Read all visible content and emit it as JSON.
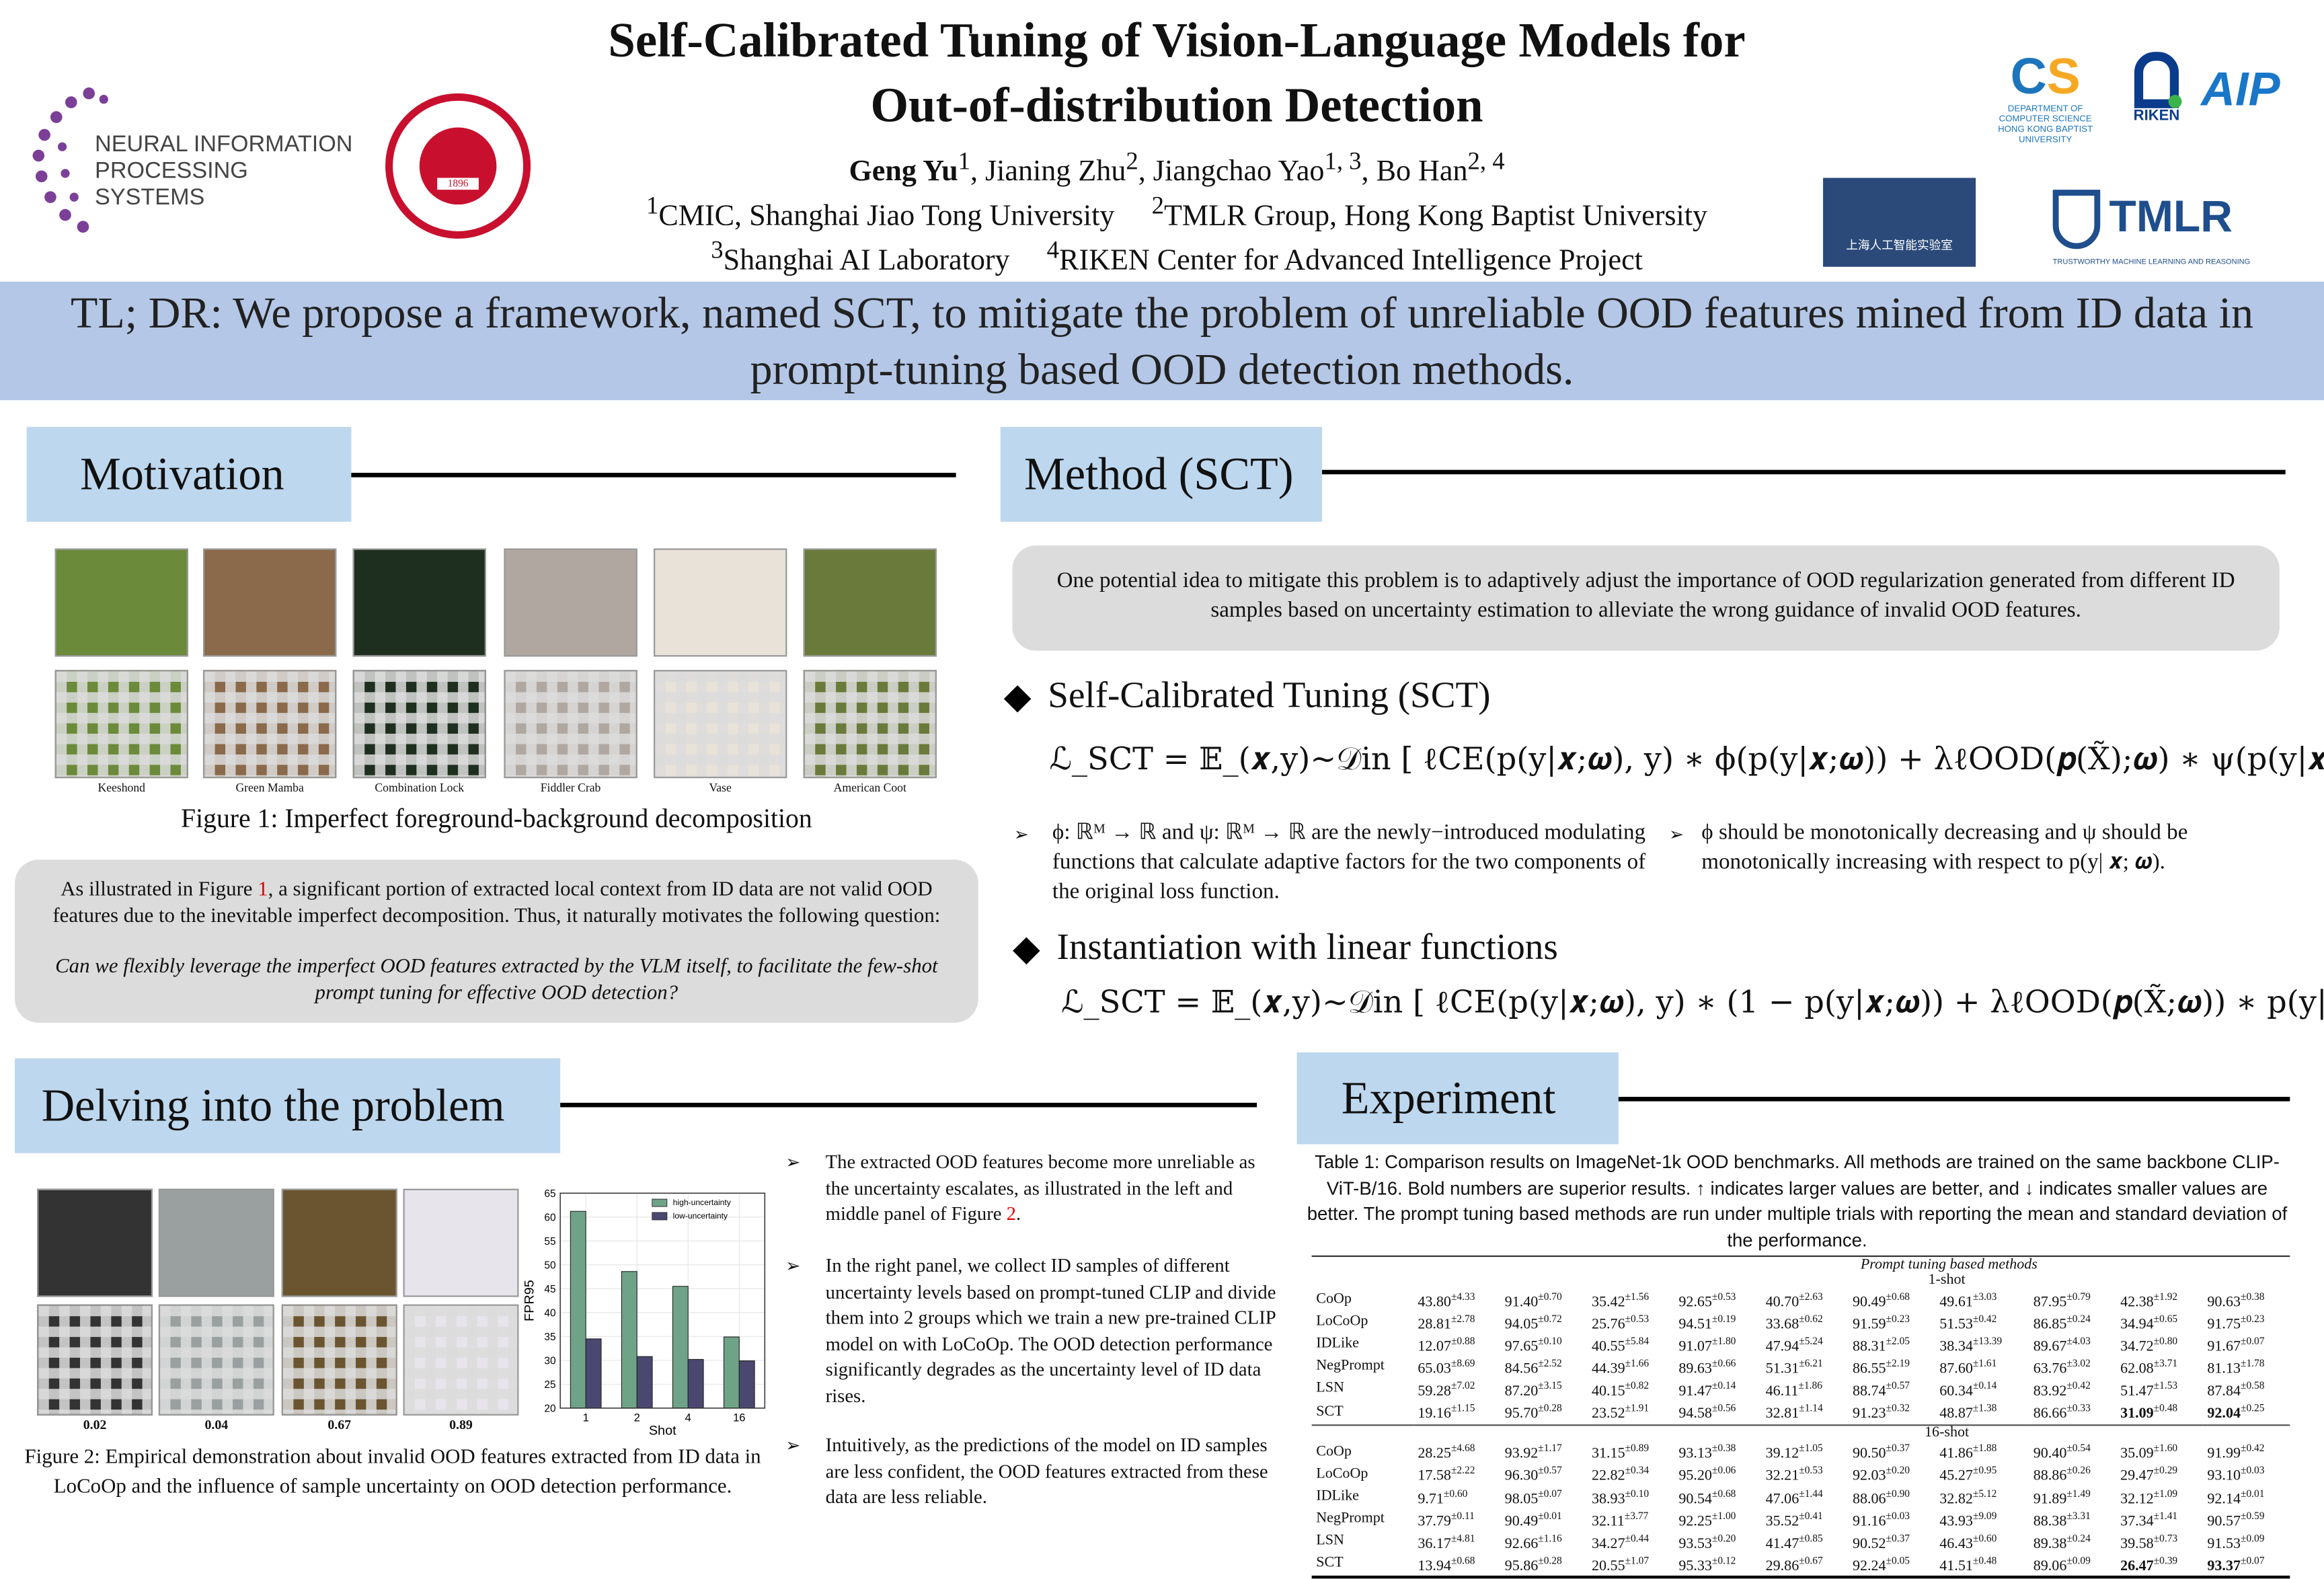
{
  "header": {
    "title_line1": "Self-Calibrated Tuning of Vision-Language Models for",
    "title_line2": "Out-of-distribution Detection",
    "authors": [
      {
        "name": "Geng Yu",
        "sup": "1"
      },
      {
        "name": "Jianing Zhu",
        "sup": "2"
      },
      {
        "name": "Jiangchao Yao",
        "sup": "1, 3"
      },
      {
        "name": "Bo Han",
        "sup": "2, 4"
      }
    ],
    "aff1": {
      "sup": "1",
      "text": "CMIC, Shanghai Jiao Tong University"
    },
    "aff2": {
      "sup": "2",
      "text": "TMLR Group, Hong Kong Baptist University"
    },
    "aff3": {
      "sup": "3",
      "text": "Shanghai AI Laboratory"
    },
    "aff4": {
      "sup": "4",
      "text": "RIKEN Center for Advanced Intelligence Project"
    }
  },
  "logos": {
    "neurips": "NEURAL INFORMATION PROCESSING SYSTEMS",
    "sjtu": "SHANGHAI JIAO TONG UNIVERSITY 1896",
    "cs": "DEPARTMENT OF COMPUTER SCIENCE HONG KONG BAPTIST UNIVERSITY",
    "riken": "RIKEN",
    "aip": "AIP",
    "shlab": "上海人工智能实验室 Shanghai Artificial Intelligence Laboratory",
    "tmlr": "TMLR",
    "tmlr_sub": "TRUSTWORTHY MACHINE LEARNING AND REASONING"
  },
  "tldr": {
    "lead": "TL; DR:",
    "text": " We propose a framework, named SCT, to mitigate the problem of unreliable OOD features mined from ID data in prompt-tuning based OOD detection methods."
  },
  "motivation": {
    "heading": "Motivation",
    "figure_labels": [
      "Keeshond",
      "Green Mamba",
      "Combination Lock",
      "Fiddler Crab",
      "Vase",
      "American Coot"
    ],
    "caption": "Figure 1: Imperfect foreground-background decomposition",
    "box_text_pre": "As illustrated in Figure ",
    "box_ref": "1",
    "box_text_post": ", a significant portion of extracted local context from ID data are not valid OOD features due to the inevitable imperfect decomposition. Thus, it naturally motivates the following question:",
    "question": "Can we flexibly leverage the imperfect OOD features extracted by the VLM itself, to facilitate the few-shot prompt tuning for effective OOD detection?",
    "ref_color": "#e00000"
  },
  "method": {
    "heading": "Method (SCT)",
    "idea": "One potential idea to mitigate this problem is to adaptively adjust the importance of OOD regularization generated from different ID samples based on uncertainty estimation to alleviate the wrong guidance of invalid OOD features.",
    "sub1": "Self-Calibrated Tuning (SCT)",
    "eq1": "ℒ_SCT = 𝔼_(𝒙,y)∼𝒟in [ ℓCE(p(y|𝒙;𝝎), y) ∗ ϕ(p(y|𝒙;𝝎)) + λℓOOD(𝒑(X̃);𝝎) ∗ ψ(p(y|𝒙;𝝎)) ]",
    "bullet1": "ϕ: ℝᴹ → ℝ and ψ: ℝᴹ → ℝ are the newly−introduced modulating functions that calculate adaptive factors for the two components of the original loss function.",
    "bullet2": "ϕ should be monotonically decreasing and ψ should be monotonically increasing with respect to p(y| 𝒙; 𝝎).",
    "sub2": "Instantiation with linear functions",
    "eq2": "ℒ_SCT = 𝔼_(𝒙,y)∼𝒟in [ ℓCE(p(y|𝒙;𝝎), y) ∗ (1 − p(y|𝒙;𝝎)) + λℓOOD(𝒑(X̃;𝝎)) ∗ p(y|𝒙;𝝎) ]"
  },
  "delving": {
    "heading": "Delving into  the problem",
    "uncertainty_labels": [
      "0.02",
      "0.04",
      "0.67",
      "0.89"
    ],
    "caption": "Figure 2: Empirical demonstration about invalid OOD features extracted from ID data in LoCoOp and the influence of sample uncertainty on OOD detection performance.",
    "bullets": [
      {
        "pre": "The extracted OOD features become more unreliable as the uncertainty escalates, as illustrated in the left and middle panel of Figure ",
        "ref": "2",
        "post": "."
      },
      {
        "pre": "In the right panel, we collect ID samples of different uncertainty levels based on prompt-tuned CLIP and divide them into 2 groups which we train a new pre-trained CLIP model on with LoCoOp. The OOD detection performance significantly degrades as the uncertainty level of ID data rises.",
        "ref": "",
        "post": ""
      },
      {
        "pre": "Intuitively, as the predictions of the model on ID samples are less confident, the OOD features extracted from these data are less reliable.",
        "ref": "",
        "post": ""
      }
    ]
  },
  "chart_data": {
    "type": "bar",
    "categories": [
      "1",
      "2",
      "4",
      "16"
    ],
    "series": [
      {
        "name": "high-uncertainty",
        "values": [
          61.2,
          48.6,
          45.5,
          34.9
        ],
        "color": "#6fa387"
      },
      {
        "name": "low-uncertainty",
        "values": [
          34.5,
          30.8,
          30.2,
          29.9
        ],
        "color": "#4a4870"
      }
    ],
    "xlabel": "Shot",
    "ylabel": "FPR95",
    "ylim": [
      20,
      65
    ],
    "yticks": [
      20,
      25,
      30,
      35,
      40,
      45,
      50,
      55,
      60,
      65
    ],
    "grid": true,
    "legend": "top-right"
  },
  "experiment": {
    "heading": "Experiment",
    "caption": "Table 1: Comparison results on ImageNet-1k OOD benchmarks. All methods are trained on the same backbone CLIP-ViT-B/16. Bold numbers are superior results. ↑ indicates larger values are better, and ↓ indicates smaller values are better. The prompt tuning based methods are run under multiple trials with reporting the mean and standard deviation of the performance.",
    "group_label": "Prompt tuning based methods",
    "blocks": [
      {
        "label": "1-shot",
        "rows": [
          [
            "CoOp",
            "43.80|4.33",
            "91.40|0.70",
            "35.42|1.56",
            "92.65|0.53",
            "40.70|2.63",
            "90.49|0.68",
            "49.61|3.03",
            "87.95|0.79",
            "42.38|1.92",
            "90.63|0.38"
          ],
          [
            "LoCoOp",
            "28.81|2.78",
            "94.05|0.72",
            "25.76|0.53",
            "94.51|0.19",
            "33.68|0.62",
            "91.59|0.23",
            "51.53|0.42",
            "86.85|0.24",
            "34.94|0.65",
            "91.75|0.23"
          ],
          [
            "IDLike",
            "12.07|0.88",
            "97.65|0.10",
            "40.55|5.84",
            "91.07|1.80",
            "47.94|5.24",
            "88.31|2.05",
            "38.34|13.39",
            "89.67|4.03",
            "34.72|0.80",
            "91.67|0.07"
          ],
          [
            "NegPrompt",
            "65.03|8.69",
            "84.56|2.52",
            "44.39|1.66",
            "89.63|0.66",
            "51.31|6.21",
            "86.55|2.19",
            "87.60|1.61",
            "63.76|3.02",
            "62.08|3.71",
            "81.13|1.78"
          ],
          [
            "LSN",
            "59.28|7.02",
            "87.20|3.15",
            "40.15|0.82",
            "91.47|0.14",
            "46.11|1.86",
            "88.74|0.57",
            "60.34|0.14",
            "83.92|0.42",
            "51.47|1.53",
            "87.84|0.58"
          ],
          [
            "SCT",
            "19.16|1.15",
            "95.70|0.28",
            "23.52|1.91",
            "94.58|0.56",
            "32.81|1.14",
            "91.23|0.32",
            "48.87|1.38",
            "86.66|0.33",
            "*31.09|0.48",
            "*92.04|0.25"
          ]
        ]
      },
      {
        "label": "16-shot",
        "rows": [
          [
            "CoOp",
            "28.25|4.68",
            "93.92|1.17",
            "31.15|0.89",
            "93.13|0.38",
            "39.12|1.05",
            "90.50|0.37",
            "41.86|1.88",
            "90.40|0.54",
            "35.09|1.60",
            "91.99|0.42"
          ],
          [
            "LoCoOp",
            "17.58|2.22",
            "96.30|0.57",
            "22.82|0.34",
            "95.20|0.06",
            "32.21|0.53",
            "92.03|0.20",
            "45.27|0.95",
            "88.86|0.26",
            "29.47|0.29",
            "93.10|0.03"
          ],
          [
            "IDLike",
            "9.71|0.60",
            "98.05|0.07",
            "38.93|0.10",
            "90.54|0.68",
            "47.06|1.44",
            "88.06|0.90",
            "32.82|5.12",
            "91.89|1.49",
            "32.12|1.09",
            "92.14|0.01"
          ],
          [
            "NegPrompt",
            "37.79|0.11",
            "90.49|0.01",
            "32.11|3.77",
            "92.25|1.00",
            "35.52|0.41",
            "91.16|0.03",
            "43.93|9.09",
            "88.38|3.31",
            "37.34|1.41",
            "90.57|0.59"
          ],
          [
            "LSN",
            "36.17|4.81",
            "92.66|1.16",
            "34.27|0.44",
            "93.53|0.20",
            "41.47|0.85",
            "90.52|0.37",
            "46.43|0.60",
            "89.38|0.24",
            "39.58|0.73",
            "91.53|0.09"
          ],
          [
            "SCT",
            "13.94|0.68",
            "95.86|0.28",
            "20.55|1.07",
            "95.33|0.12",
            "29.86|0.67",
            "92.24|0.05",
            "41.51|0.48",
            "89.06|0.09",
            "*26.47|0.39",
            "*93.37|0.07"
          ]
        ]
      }
    ]
  },
  "colors": {
    "tldr_band": "#b4c7e7",
    "section_header": "#bdd7ee",
    "box_grey": "#dcdcdc"
  }
}
